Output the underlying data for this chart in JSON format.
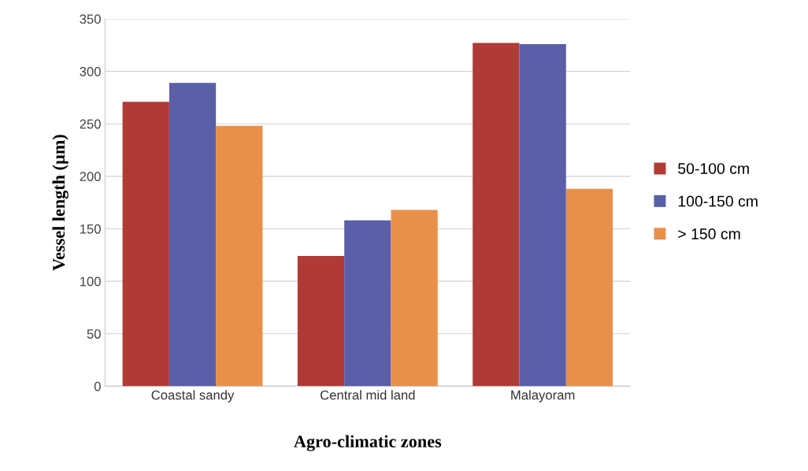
{
  "chart_data": {
    "type": "bar",
    "xlabel": "Agro-climatic zones",
    "ylabel": "Vessel length (µm)",
    "categories": [
      "Coastal sandy",
      "Central mid land",
      "Malayoram"
    ],
    "series": [
      {
        "name": "50-100 cm",
        "color": "#b03a35",
        "values": [
          271,
          124,
          327
        ]
      },
      {
        "name": "100-150 cm",
        "color": "#5a5fa8",
        "values": [
          289,
          158,
          326
        ]
      },
      {
        "name": "> 150 cm",
        "color": "#e8904a",
        "values": [
          248,
          168,
          188
        ]
      }
    ],
    "ylim": [
      0,
      350
    ],
    "yticks": [
      0,
      50,
      100,
      150,
      200,
      250,
      300,
      350
    ],
    "grid": "y",
    "legend": "right"
  }
}
